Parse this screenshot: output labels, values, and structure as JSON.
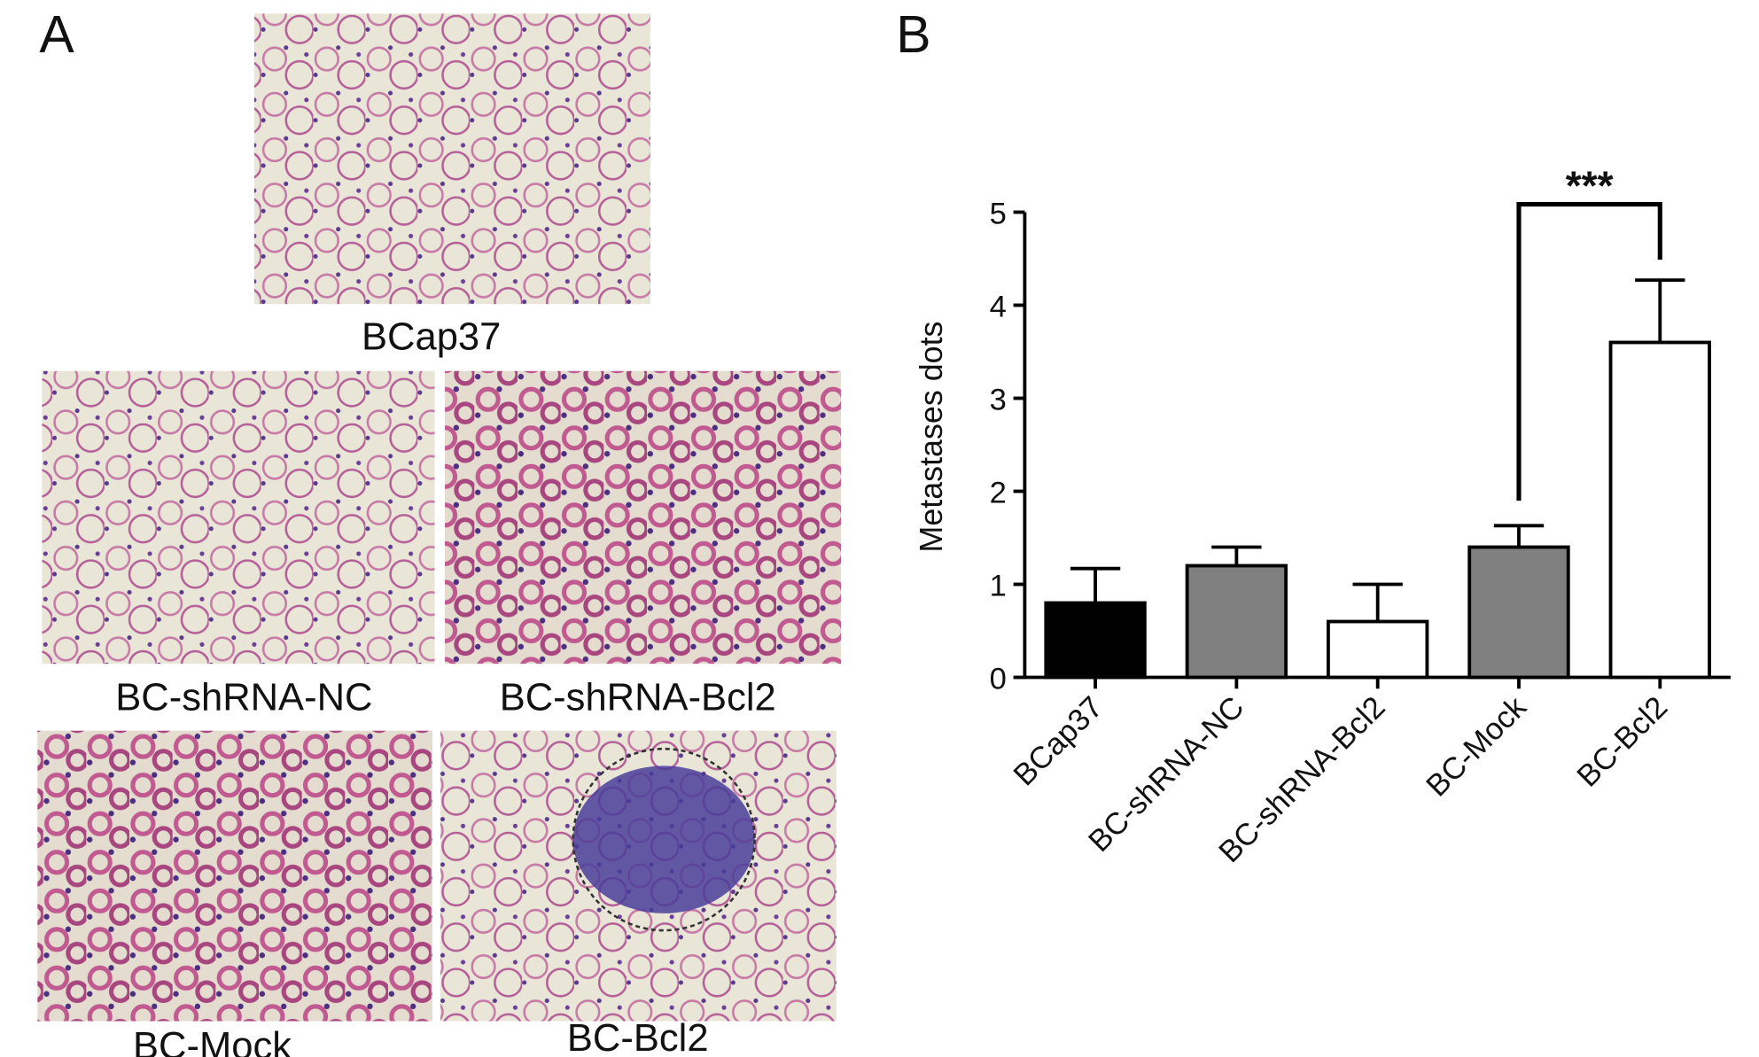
{
  "panel_labels": [
    "A",
    "B"
  ],
  "images": [
    {
      "caption": "BCap37"
    },
    {
      "caption": "BC-shRNA-NC"
    },
    {
      "caption": "BC-shRNA-Bcl2"
    },
    {
      "caption": "BC-Mock"
    },
    {
      "caption": "BC-Bcl2"
    }
  ],
  "chart_data": {
    "type": "bar",
    "ylabel": "Metastases dots",
    "categories": [
      "BCap37",
      "BC-shRNA-NC",
      "BC-shRNA-Bcl2",
      "BC-Mock",
      "BC-Bcl2"
    ],
    "values": [
      0.8,
      1.2,
      0.6,
      1.4,
      3.6
    ],
    "errors": [
      0.37,
      0.2,
      0.4,
      0.23,
      0.67
    ],
    "colors": [
      "#000000",
      "#808080",
      "#ffffff",
      "#808080",
      "#ffffff"
    ],
    "ylim": [
      0,
      5
    ],
    "yticks": [
      0,
      1,
      2,
      3,
      4,
      5
    ],
    "annotation": "***"
  }
}
